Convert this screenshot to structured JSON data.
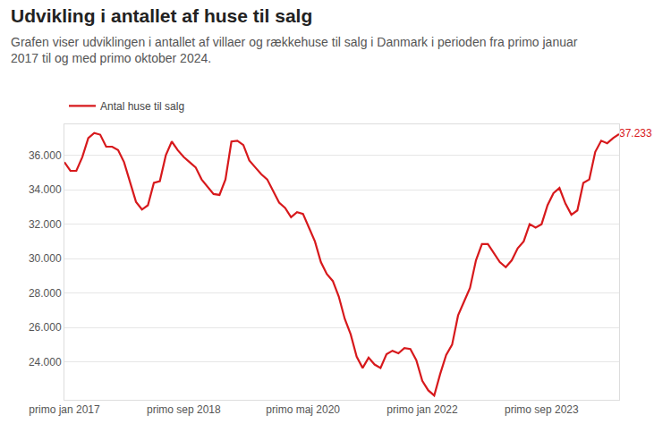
{
  "chart_data": {
    "type": "line",
    "title": "Udvikling i antallet af huse til salg",
    "subtitle": "Grafen viser udviklingen i antallet af villaer og rækkehuse til salg i Danmark i perioden fra primo januar 2017 til og med primo oktober 2024.",
    "categories": [
      "primo jan 2017",
      null,
      null,
      null,
      null,
      null,
      null,
      null,
      null,
      null,
      null,
      null,
      null,
      null,
      null,
      null,
      null,
      null,
      null,
      null,
      "primo sep 2018",
      null,
      null,
      null,
      null,
      null,
      null,
      null,
      null,
      null,
      null,
      null,
      null,
      null,
      null,
      null,
      null,
      null,
      null,
      null,
      "primo maj 2020",
      null,
      null,
      null,
      null,
      null,
      null,
      null,
      null,
      null,
      null,
      null,
      null,
      null,
      null,
      null,
      null,
      null,
      null,
      null,
      "primo jan 2022",
      null,
      null,
      null,
      null,
      null,
      null,
      null,
      null,
      null,
      null,
      null,
      null,
      null,
      null,
      null,
      null,
      null,
      null,
      null,
      "primo sep 2023",
      null,
      null,
      null,
      null,
      null,
      null,
      null,
      null,
      null,
      null,
      null,
      null,
      null
    ],
    "series": [
      {
        "name": "Antal huse til salg",
        "color": "#d7191c",
        "values": [
          35600,
          35100,
          35100,
          35900,
          37000,
          37300,
          37200,
          36500,
          36500,
          36300,
          35600,
          34500,
          33300,
          32850,
          33100,
          34400,
          34500,
          36000,
          36800,
          36300,
          35900,
          35600,
          35300,
          34600,
          34200,
          33750,
          33700,
          34600,
          36800,
          36850,
          36600,
          35700,
          35300,
          34900,
          34600,
          33900,
          33250,
          32950,
          32400,
          32700,
          32600,
          31800,
          31000,
          29800,
          29100,
          28700,
          27800,
          26500,
          25600,
          24300,
          23650,
          24250,
          23850,
          23650,
          24450,
          24650,
          24500,
          24800,
          24750,
          24100,
          22900,
          22350,
          22050,
          23300,
          24400,
          25000,
          26700,
          27500,
          28300,
          29900,
          30850,
          30850,
          30300,
          29800,
          29500,
          29900,
          30600,
          31000,
          32000,
          31800,
          32000,
          33100,
          33800,
          34100,
          33200,
          32550,
          32800,
          34400,
          34600,
          36200,
          36850,
          36700,
          37000,
          37233
        ],
        "value_labels": [
          null,
          null,
          null,
          null,
          null,
          null,
          null,
          null,
          null,
          null,
          null,
          null,
          null,
          null,
          null,
          null,
          null,
          null,
          null,
          null,
          null,
          null,
          null,
          null,
          null,
          null,
          null,
          null,
          null,
          null,
          null,
          null,
          null,
          null,
          null,
          null,
          null,
          null,
          null,
          null,
          null,
          null,
          null,
          null,
          null,
          null,
          null,
          null,
          null,
          null,
          null,
          null,
          null,
          null,
          null,
          null,
          null,
          null,
          null,
          null,
          null,
          null,
          null,
          null,
          null,
          null,
          null,
          null,
          null,
          null,
          null,
          null,
          null,
          null,
          null,
          null,
          null,
          null,
          null,
          null,
          null,
          null,
          null,
          null,
          null,
          null,
          null,
          null,
          null,
          null,
          null,
          null,
          null,
          "37.233"
        ]
      }
    ],
    "ylim": [
      21800,
      37800
    ],
    "yticks": [
      {
        "value": 24000,
        "label": "24.000"
      },
      {
        "value": 26000,
        "label": "26.000"
      },
      {
        "value": 28000,
        "label": "28.000"
      },
      {
        "value": 30000,
        "label": "30.000"
      },
      {
        "value": 32000,
        "label": "32.000"
      },
      {
        "value": 34000,
        "label": "34.000"
      },
      {
        "value": 36000,
        "label": "36.000"
      }
    ],
    "grid": true,
    "legend": "top-left",
    "data_labels": true
  }
}
